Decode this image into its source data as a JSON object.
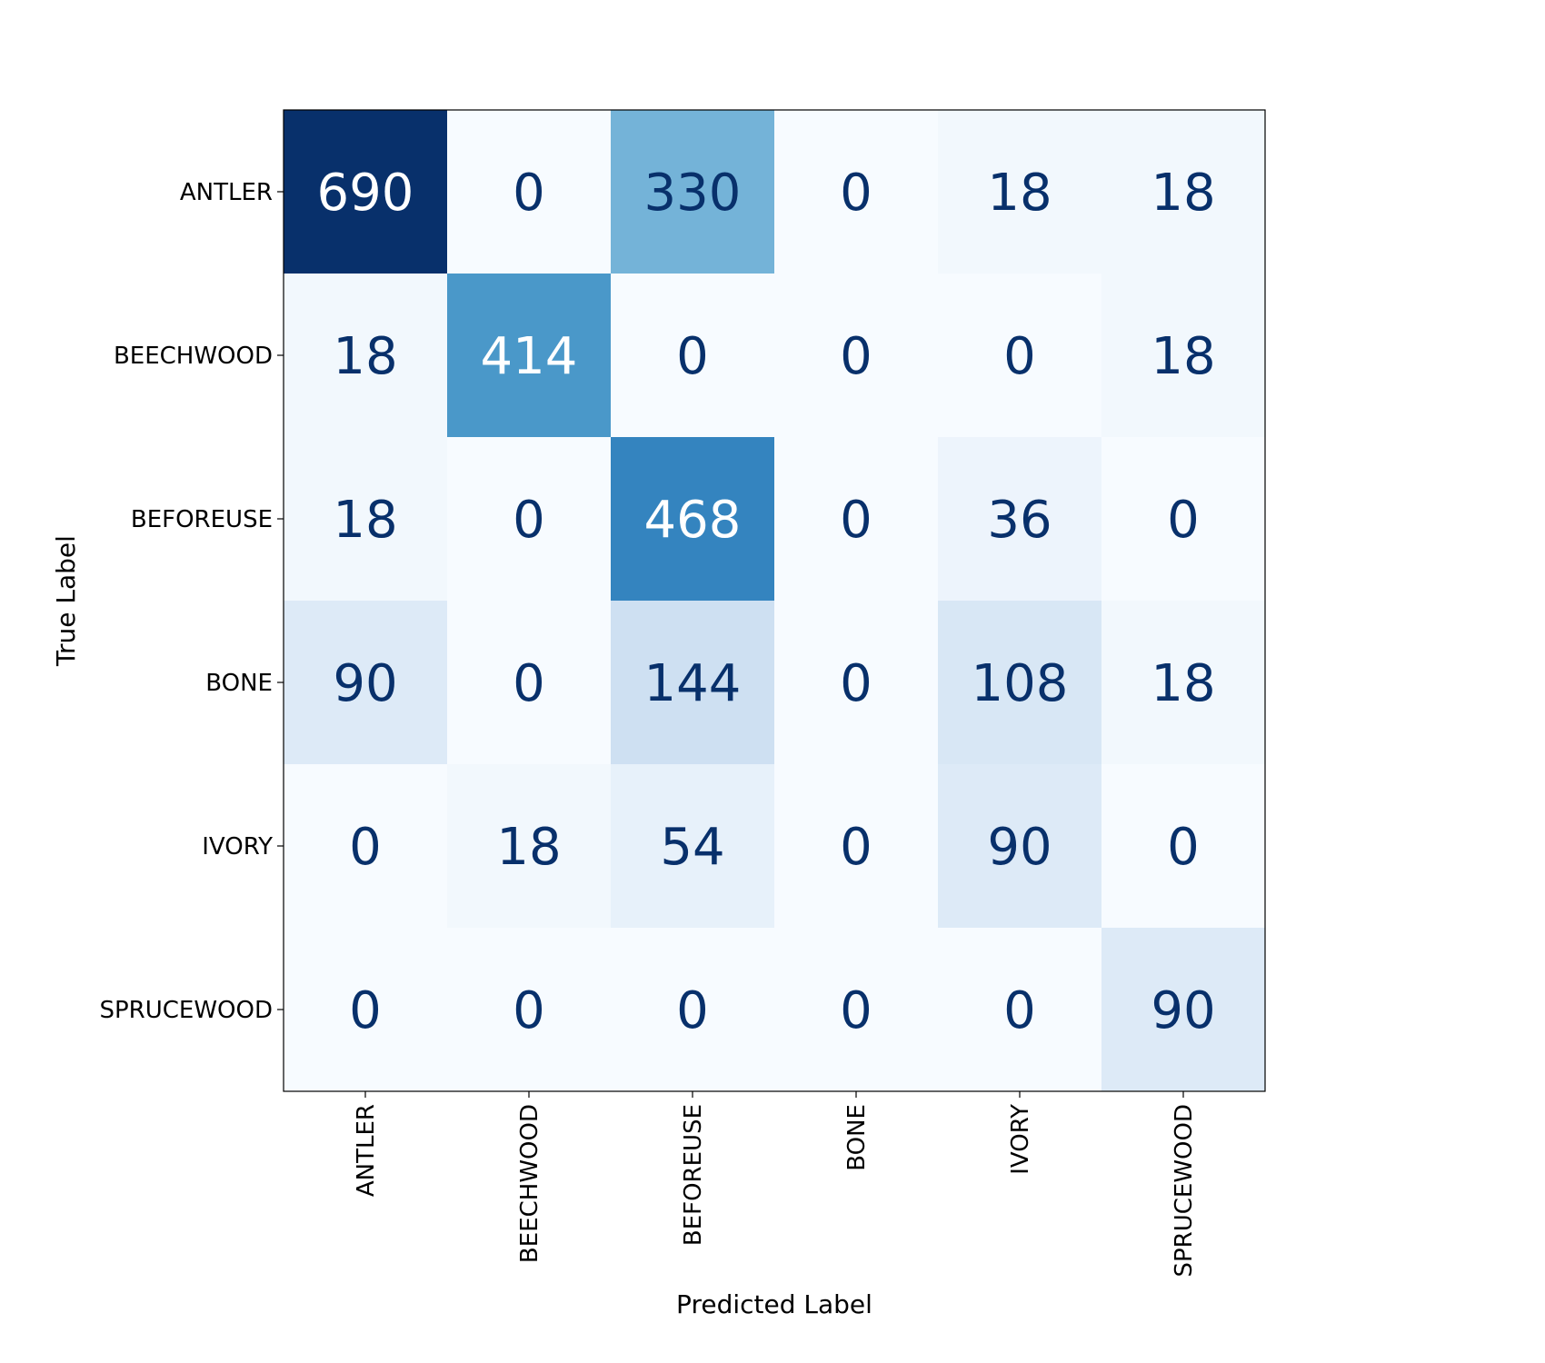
{
  "chart_data": {
    "type": "heatmap",
    "title": "",
    "xlabel": "Predicted Label",
    "ylabel": "True Label",
    "x_categories": [
      "ANTLER",
      "BEECHWOOD",
      "BEFOREUSE",
      "BONE",
      "IVORY",
      "SPRUCEWOOD"
    ],
    "y_categories": [
      "ANTLER",
      "BEECHWOOD",
      "BEFOREUSE",
      "BONE",
      "IVORY",
      "SPRUCEWOOD"
    ],
    "matrix": [
      [
        690,
        0,
        330,
        0,
        18,
        18
      ],
      [
        18,
        414,
        0,
        0,
        0,
        18
      ],
      [
        18,
        0,
        468,
        0,
        36,
        0
      ],
      [
        90,
        0,
        144,
        0,
        108,
        18
      ],
      [
        0,
        18,
        54,
        0,
        90,
        0
      ],
      [
        0,
        0,
        0,
        0,
        0,
        90
      ]
    ],
    "value_range": [
      0,
      690
    ],
    "colormap": "Blues",
    "grid": false,
    "colors": {
      "low": "#f7fbff",
      "high": "#08306b",
      "text_dark": "#08306b",
      "text_light": "#ffffff"
    }
  }
}
